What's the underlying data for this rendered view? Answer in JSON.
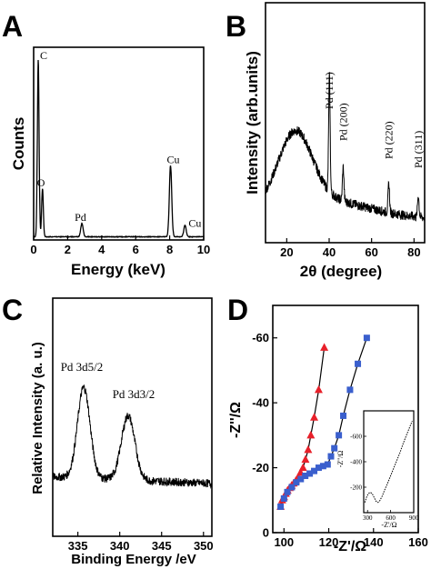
{
  "chart_data": [
    {
      "panel": "A",
      "type": "line",
      "xlabel": "Energy (keV)",
      "ylabel": "Counts",
      "xlim": [
        0,
        10
      ],
      "ylim": [
        0,
        100
      ],
      "xticks": [
        0,
        2,
        4,
        6,
        8,
        10
      ],
      "yticks": [],
      "peaks": [
        {
          "label": "C",
          "x": 0.27,
          "y": 92
        },
        {
          "label": "O",
          "x": 0.52,
          "y": 25
        },
        {
          "label": "Pd",
          "x": 2.84,
          "y": 7
        },
        {
          "label": "Cu",
          "x": 8.05,
          "y": 37
        },
        {
          "label": "Cu",
          "x": 8.9,
          "y": 6
        }
      ]
    },
    {
      "panel": "B",
      "type": "line",
      "xlabel": "2θ (degree)",
      "ylabel": "Intensity (arb.units)",
      "xlim": [
        10,
        85
      ],
      "ylim": [
        0,
        100
      ],
      "xticks": [
        20,
        40,
        60,
        80
      ],
      "yticks": [],
      "peaks": [
        {
          "label": "Pd (111)",
          "x": 40.1
        },
        {
          "label": "Pd (200)",
          "x": 46.6
        },
        {
          "label": "Pd (220)",
          "x": 68.1
        },
        {
          "label": "Pd (311)",
          "x": 82.0
        }
      ]
    },
    {
      "panel": "C",
      "type": "line",
      "xlabel": "Binding Energy /eV",
      "ylabel": "Relative Intensity (a. u.)",
      "xlim": [
        332,
        351
      ],
      "ylim": [
        0,
        100
      ],
      "xticks": [
        335,
        340,
        345,
        350
      ],
      "yticks": [],
      "peaks": [
        {
          "label": "Pd 3d5/2",
          "x": 335.7
        },
        {
          "label": "Pd 3d3/2",
          "x": 341.0
        }
      ]
    },
    {
      "panel": "D",
      "type": "scatter",
      "xlabel": "-Z'/Ω",
      "ylabel": "-Z''/Ω",
      "xlim": [
        95,
        160
      ],
      "ylim": [
        0,
        -70
      ],
      "xticks": [
        100,
        120,
        140,
        160
      ],
      "yticks": [
        0,
        -20,
        -40,
        -60
      ],
      "series": [
        {
          "marker": "triangle",
          "color": "#e8202a",
          "x": [
            98.5,
            99.2,
            100.0,
            100.8,
            101.6,
            102.5,
            103.4,
            104.3,
            105.3,
            106.3,
            107.4,
            108.5,
            109.6,
            110.8,
            112.0,
            113.5,
            115.5,
            118.0
          ],
          "y": [
            -8,
            -10,
            -11,
            -12,
            -13,
            -13.8,
            -14.5,
            -15.2,
            -16,
            -17,
            -18.5,
            -20,
            -22.5,
            -25.5,
            -30,
            -35.5,
            -44,
            -57
          ]
        },
        {
          "marker": "square",
          "color": "#3a5fcd",
          "x": [
            98.5,
            100.0,
            101.5,
            103.5,
            105.5,
            107.5,
            109.5,
            111.5,
            113.5,
            115.5,
            117.5,
            119.5,
            121.0,
            122.5,
            124.5,
            126.5,
            129.5,
            133.0,
            137.0
          ],
          "y": [
            -8,
            -10.5,
            -12.5,
            -14,
            -15.5,
            -16.5,
            -17.5,
            -18.2,
            -19,
            -20,
            -20.5,
            -21,
            -23.5,
            -26,
            -30,
            -36,
            -44,
            -52,
            -60
          ]
        }
      ],
      "inset": {
        "xlabel": "-Z'/Ω",
        "ylabel": "-Z''/Ω",
        "xlim": [
          250,
          900
        ],
        "ylim": [
          0,
          -800
        ],
        "xticks": [
          300,
          600,
          900
        ],
        "yticks": [
          -200,
          -400,
          -600
        ],
        "x": [
          265,
          285,
          310,
          335,
          360,
          385,
          410,
          435,
          460,
          490,
          520,
          560,
          600,
          640,
          680,
          720,
          760,
          800,
          840,
          880
        ],
        "y": [
          -80,
          -120,
          -150,
          -160,
          -150,
          -120,
          -90,
          -80,
          -95,
          -130,
          -175,
          -230,
          -290,
          -350,
          -410,
          -470,
          -540,
          -600,
          -660,
          -720
        ]
      }
    }
  ],
  "panels": {
    "A": {
      "letter": "A"
    },
    "B": {
      "letter": "B"
    },
    "C": {
      "letter": "C"
    },
    "D": {
      "letter": "D"
    }
  }
}
